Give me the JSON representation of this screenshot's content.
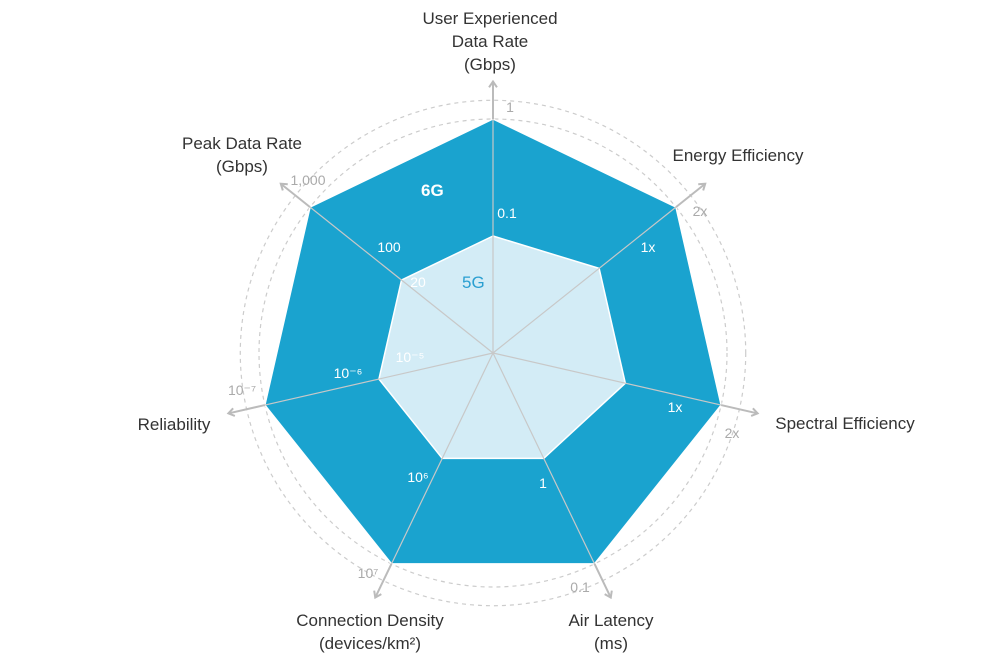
{
  "chart_data": {
    "type": "radar",
    "title": "",
    "axes": [
      {
        "label": [
          "User Experienced",
          "Data Rate",
          "(Gbps)"
        ],
        "scale_6g": "1",
        "scale_5g": "0.1"
      },
      {
        "label": [
          "Energy Efficiency"
        ],
        "scale_6g": "2x",
        "scale_5g": "1x"
      },
      {
        "label": [
          "Spectral Efficiency"
        ],
        "scale_6g": "2x",
        "scale_5g": "1x"
      },
      {
        "label": [
          "Air Latency",
          "(ms)"
        ],
        "scale_6g": "0.1",
        "scale_5g": "1"
      },
      {
        "label": [
          "Connection Density",
          "(devices/km²)"
        ],
        "scale_6g": "10⁷",
        "scale_5g": "10⁶"
      },
      {
        "label": [
          "Reliability"
        ],
        "scale_6g": "10⁻⁷",
        "scale_mid": "10⁻⁶",
        "scale_5g": "10⁻⁵"
      },
      {
        "label": [
          "Peak Data Rate",
          "(Gbps)"
        ],
        "scale_6g": "1,000",
        "scale_mid": "100",
        "scale_5g": "20"
      }
    ],
    "series": [
      {
        "name": "6G",
        "values": [
          1.0,
          1.0,
          1.0,
          1.0,
          1.0,
          1.0,
          1.0
        ],
        "color": "#1aa3cf"
      },
      {
        "name": "5G",
        "values": [
          0.5,
          0.58,
          0.58,
          0.5,
          0.5,
          0.5,
          0.5
        ],
        "color": "#d3ecf6"
      }
    ],
    "grid": true,
    "colors": {
      "grid": "#cccccc",
      "axis": "#bbbbbb",
      "label_6g": "#ffffff",
      "label_5g": "#2a9fd1"
    }
  }
}
